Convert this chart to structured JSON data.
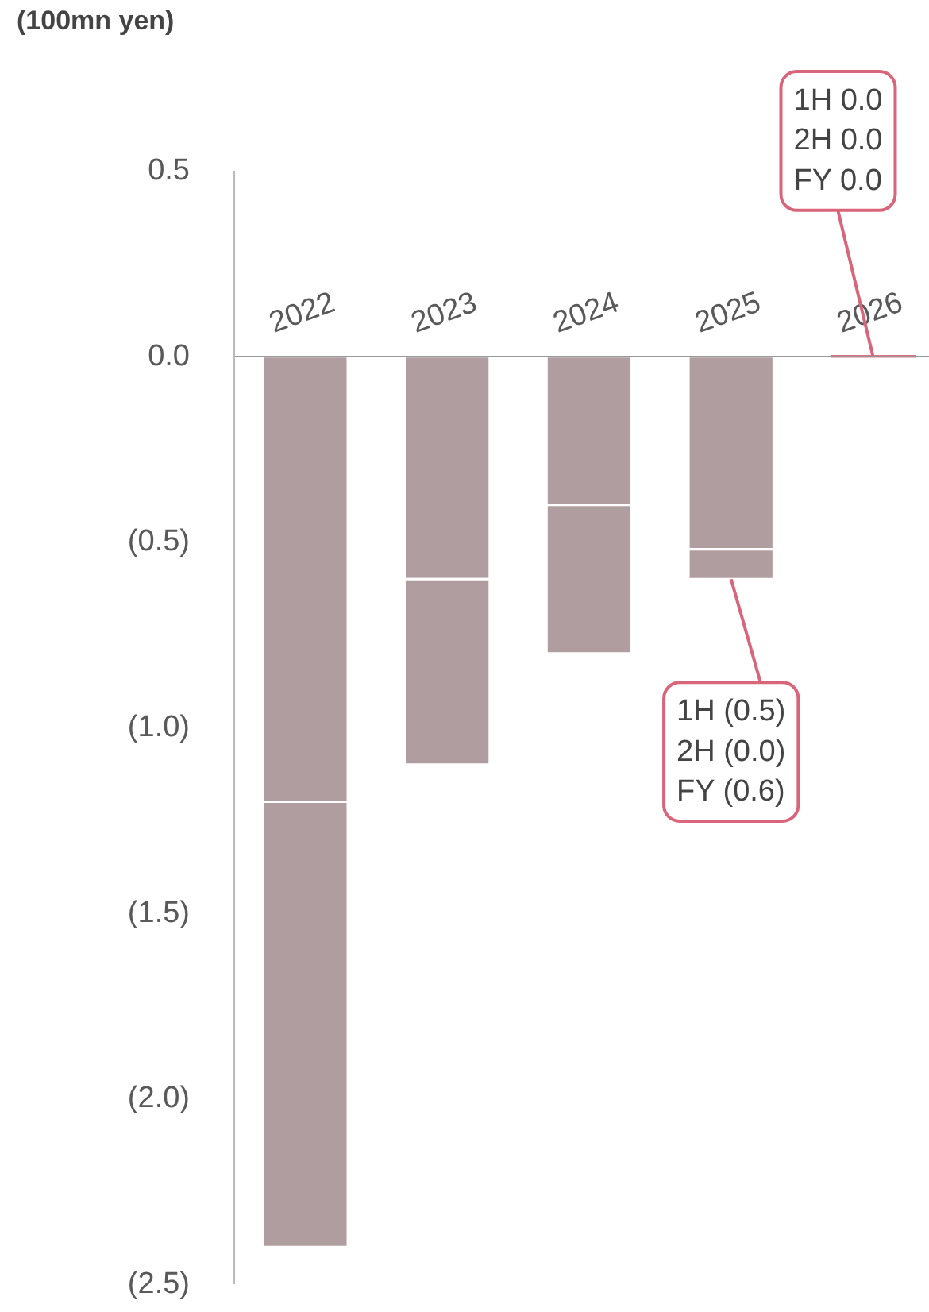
{
  "chart_data": {
    "type": "bar",
    "stacked": true,
    "ylabel": "(100mn yen)",
    "categories": [
      "2022",
      "2023",
      "2024",
      "2025",
      "2026"
    ],
    "series": [
      {
        "colors": [
          "#b09da0",
          "#b09da0",
          "#b09da0",
          "#b09da0",
          "#d9657a"
        ],
        "values": [
          -1.2,
          -0.6,
          -0.4,
          -0.52,
          0
        ]
      },
      {
        "colors": [
          "#b09da0",
          "#b09da0",
          "#b09da0",
          "#b09da0",
          "#d9657a"
        ],
        "values": [
          -1.2,
          -0.5,
          -0.4,
          -0.08,
          0
        ]
      }
    ],
    "ylim": [
      -2.5,
      0.5
    ],
    "yticks": [
      0.5,
      {
        "value": 0,
        "label": "0.0"
      },
      {
        "value": -0.5,
        "label": "(0.5)"
      },
      {
        "value": -1,
        "label": "(1.0)"
      },
      {
        "value": -1.5,
        "label": "(1.5)"
      },
      {
        "value": -2,
        "label": "(2.0)"
      },
      {
        "value": -2.5,
        "label": "(2.5)"
      }
    ],
    "grid": false,
    "annotations": [
      {
        "text": "1H (0.5)\n2H (0.0)\nFY (0.6)",
        "x": "2025",
        "y": -0.6
      },
      {
        "text": "1H 0.0\n2H 0.0\nFY 0.0",
        "x": "2026",
        "y": 0
      }
    ]
  }
}
